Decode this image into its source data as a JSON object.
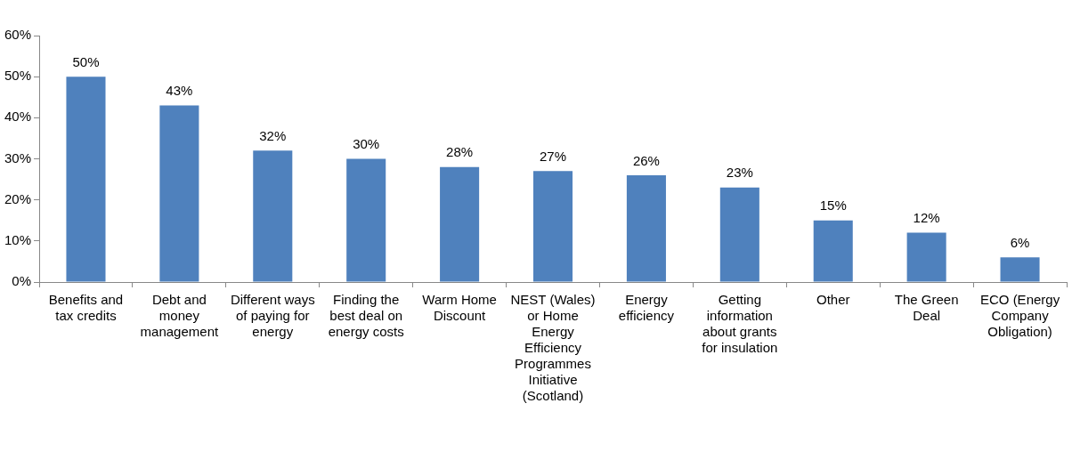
{
  "chart_data": {
    "type": "bar",
    "categories": [
      "Benefits and tax credits",
      "Debt and money management",
      "Different ways of paying for energy",
      "Finding the best deal on energy costs",
      "Warm Home Discount",
      "NEST (Wales) or Home Energy Efficiency Programmes Initiative (Scotland)",
      "Energy efficiency",
      "Getting information about grants for insulation",
      "Other",
      "The Green Deal",
      "ECO (Energy Company Obligation)"
    ],
    "values": [
      50,
      43,
      32,
      30,
      28,
      27,
      26,
      23,
      15,
      12,
      6
    ],
    "value_labels": [
      "50%",
      "43%",
      "32%",
      "30%",
      "28%",
      "27%",
      "26%",
      "23%",
      "15%",
      "12%",
      "6%"
    ],
    "color": "#4f81bd",
    "ylim": [
      0,
      60
    ],
    "yticks": [
      {
        "value": 0,
        "label": "0%"
      },
      {
        "value": 10,
        "label": "10%"
      },
      {
        "value": 20,
        "label": "20%"
      },
      {
        "value": 30,
        "label": "30%"
      },
      {
        "value": 40,
        "label": "40%"
      },
      {
        "value": 50,
        "label": "50%"
      },
      {
        "value": 60,
        "label": "60%"
      }
    ],
    "grid": false,
    "legend": false
  }
}
